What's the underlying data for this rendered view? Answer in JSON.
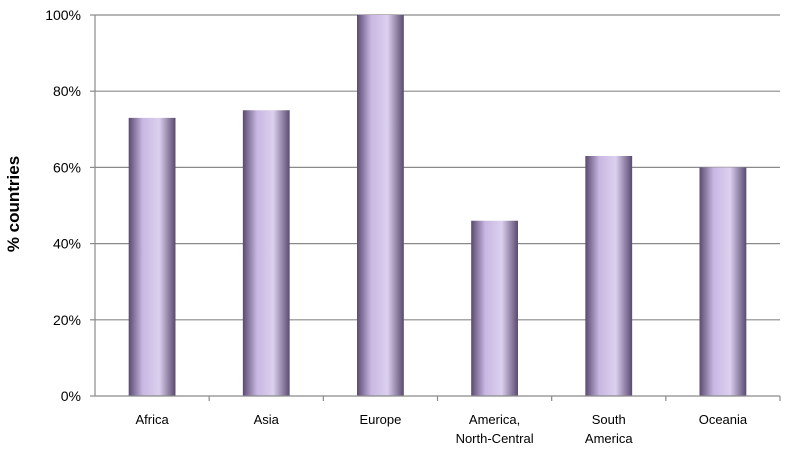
{
  "chart_data": {
    "type": "bar",
    "title": "",
    "xlabel": "",
    "ylabel": "% countries",
    "categories": [
      [
        "Africa"
      ],
      [
        "Asia"
      ],
      [
        "Europe"
      ],
      [
        "America,",
        "North-Central"
      ],
      [
        "South",
        "America"
      ],
      [
        "Oceania"
      ]
    ],
    "values": [
      73,
      75,
      100,
      46,
      63,
      60
    ],
    "ylim": [
      0,
      100
    ],
    "yticks": [
      0,
      20,
      40,
      60,
      80,
      100
    ],
    "ytick_labels": [
      "0%",
      "20%",
      "40%",
      "60%",
      "80%",
      "100%"
    ],
    "grid": true,
    "legend": "none",
    "colors": {
      "bar_edge": "#5a4a70",
      "bar_mid": "#c9b7e3",
      "bar_light": "#dcd0ef",
      "grid": "#8a8a8a",
      "axis": "#8a8a8a"
    }
  }
}
